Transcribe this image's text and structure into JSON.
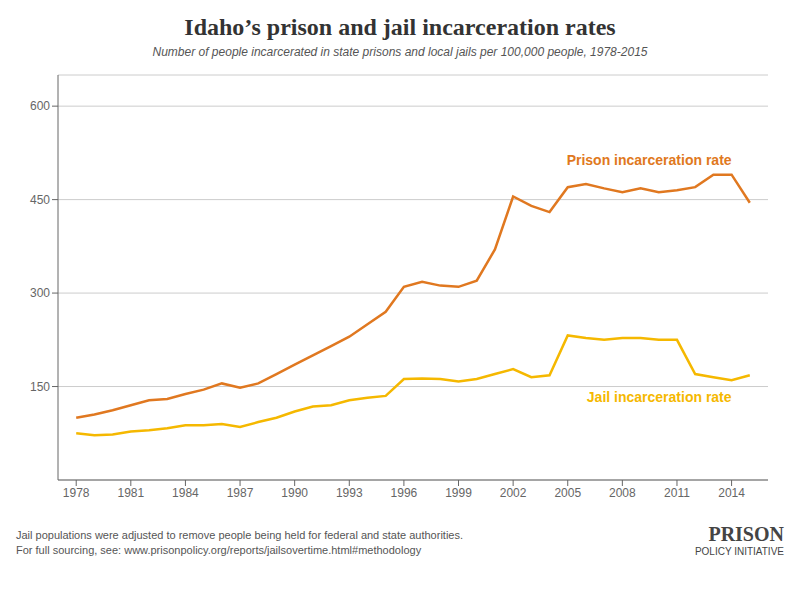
{
  "chart_data": {
    "type": "line",
    "title": "Idaho’s prison and jail incarceration rates",
    "subtitle": "Number of people incarcerated in state prisons and local jails per 100,000 people, 1978-2015",
    "x": [
      1978,
      1979,
      1980,
      1981,
      1982,
      1983,
      1984,
      1985,
      1986,
      1987,
      1988,
      1989,
      1990,
      1991,
      1992,
      1993,
      1994,
      1995,
      1996,
      1997,
      1998,
      1999,
      2000,
      2001,
      2002,
      2003,
      2004,
      2005,
      2006,
      2007,
      2008,
      2009,
      2010,
      2011,
      2012,
      2013,
      2014,
      2015
    ],
    "series": [
      {
        "name": "Prison incarceration rate",
        "color": "#e07820",
        "values": [
          100,
          105,
          112,
          120,
          128,
          130,
          138,
          145,
          155,
          148,
          155,
          170,
          185,
          200,
          215,
          230,
          250,
          270,
          310,
          318,
          312,
          310,
          320,
          370,
          455,
          440,
          430,
          470,
          475,
          468,
          462,
          468,
          462,
          465,
          470,
          490,
          490,
          445
        ]
      },
      {
        "name": "Jail incarceration rate",
        "color": "#f5b800",
        "values": [
          75,
          72,
          73,
          78,
          80,
          83,
          88,
          88,
          90,
          85,
          93,
          100,
          110,
          118,
          120,
          128,
          132,
          135,
          162,
          163,
          162,
          158,
          162,
          170,
          178,
          165,
          168,
          232,
          228,
          225,
          228,
          228,
          225,
          225,
          170,
          165,
          160,
          168
        ]
      }
    ],
    "xlim": [
      1977,
      2016
    ],
    "xticks": [
      1978,
      1981,
      1984,
      1987,
      1990,
      1993,
      1996,
      1999,
      2002,
      2005,
      2008,
      2011,
      2014
    ],
    "ylim": [
      0,
      650
    ],
    "yticks": [
      150,
      300,
      450,
      600
    ],
    "grid": true,
    "annotations": [
      "Jail populations were adjusted to remove people being held for federal and state authorities.",
      "For full sourcing, see: www.prisonpolicy.org/reports/jailsovertime.html#methodology",
      "PRISON",
      "POLICY INITIATIVE"
    ]
  }
}
